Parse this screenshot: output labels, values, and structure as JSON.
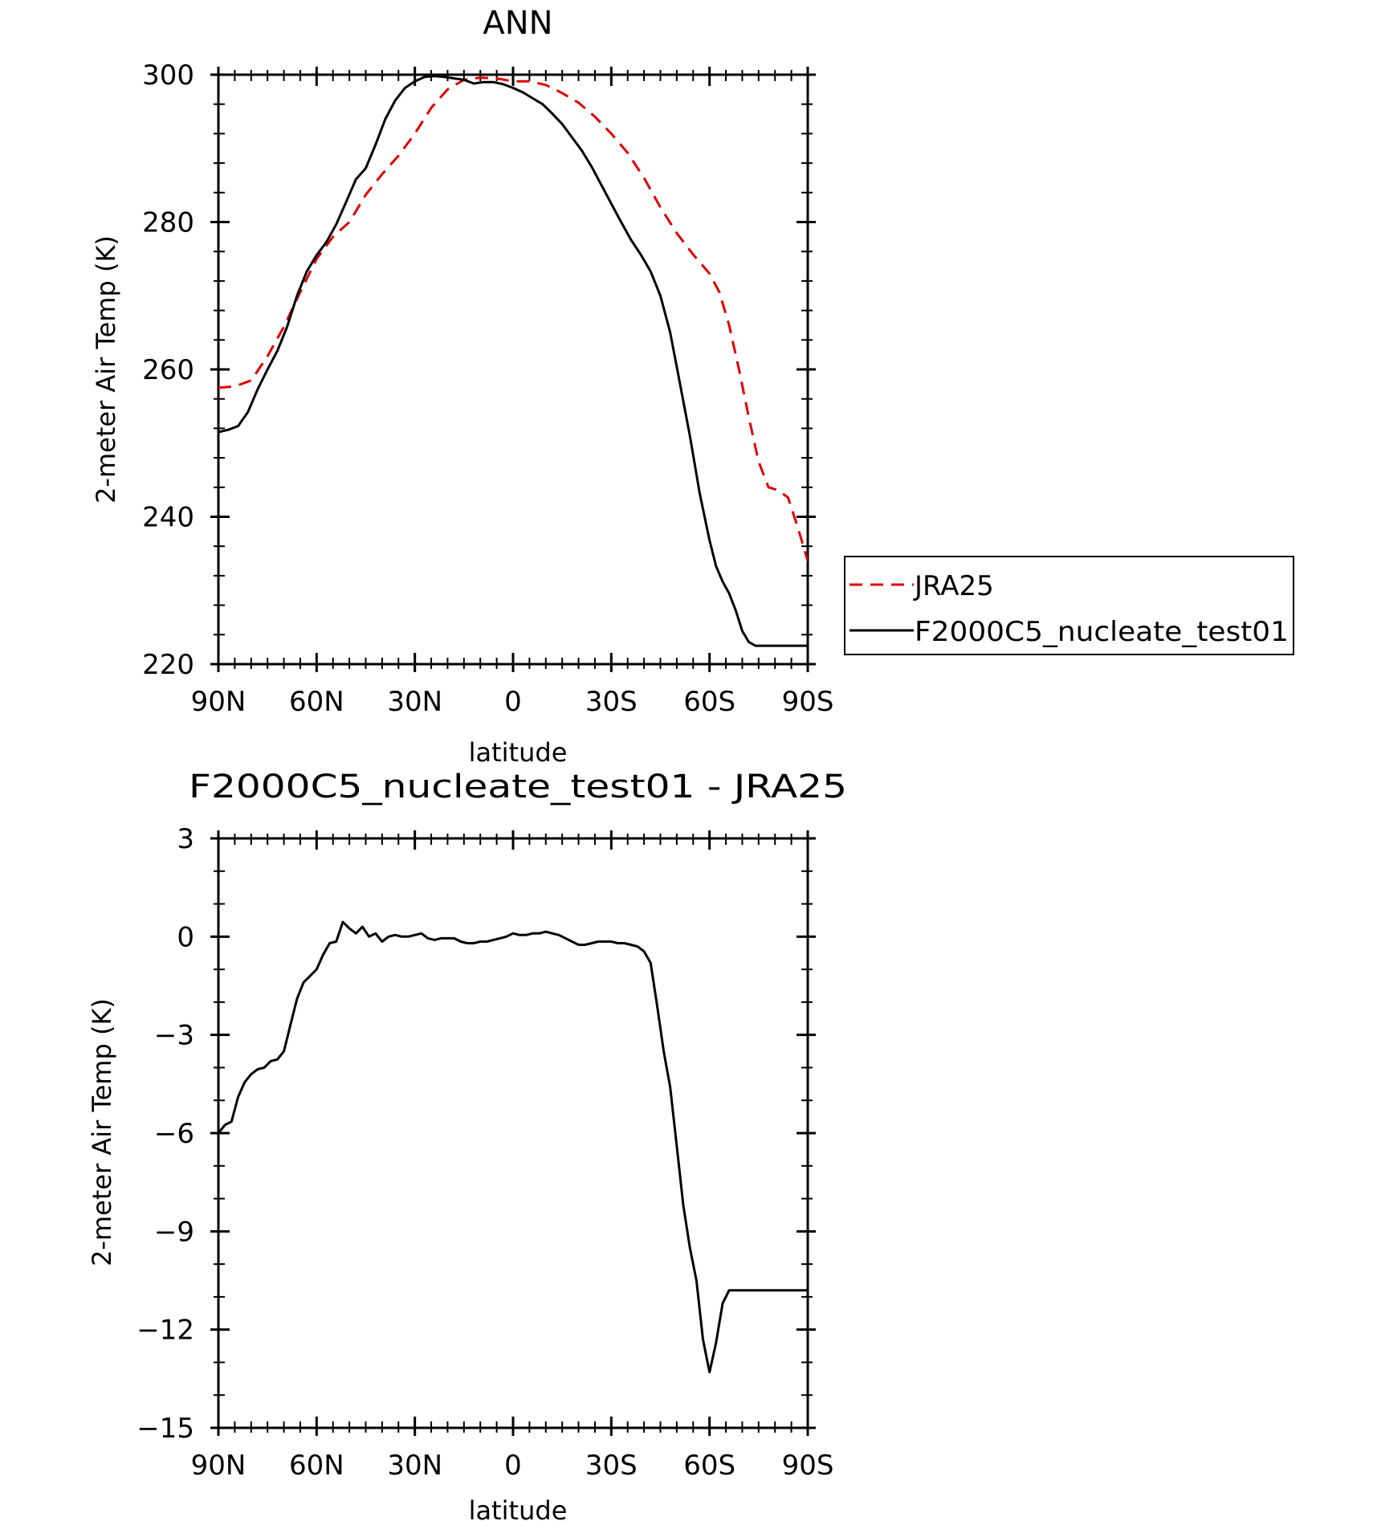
{
  "colors": {
    "axis": "#000000",
    "model_line": "#000000",
    "obs_line": "#e00000"
  },
  "chart_data": [
    {
      "type": "line",
      "title": "ANN",
      "xlabel": "latitude",
      "ylabel": "2-meter Air Temp (K)",
      "xlim": [
        90,
        -90
      ],
      "ylim": [
        220,
        300
      ],
      "xticks": [
        90,
        60,
        30,
        0,
        -30,
        -60,
        -90
      ],
      "xtick_labels": [
        "90N",
        "60N",
        "30N",
        "0",
        "30S",
        "60S",
        "90S"
      ],
      "yticks": [
        220,
        240,
        260,
        280,
        300
      ],
      "ytick_labels": [
        "220",
        "240",
        "260",
        "280",
        "300"
      ],
      "legend_position": "right-middle",
      "legend": [
        "JRA25",
        "F2000C5_nucleate_test01"
      ],
      "series": [
        {
          "name": "JRA25",
          "style": "dashed",
          "color": "#e00000",
          "x": [
            90,
            85,
            80,
            75,
            70,
            65,
            60,
            55,
            50,
            45,
            40,
            35,
            30,
            25,
            20,
            15,
            10,
            5,
            0,
            -5,
            -10,
            -15,
            -20,
            -25,
            -30,
            -35,
            -40,
            -45,
            -50,
            -55,
            -60,
            -63,
            -66,
            -69,
            -72,
            -75,
            -78,
            -81,
            -84,
            -87,
            -90
          ],
          "y": [
            257.5,
            257.7,
            258.5,
            261.8,
            265.8,
            270.5,
            275.0,
            278.0,
            280.0,
            283.7,
            286.5,
            289.0,
            292.0,
            295.5,
            298.0,
            299.3,
            299.6,
            299.5,
            299.1,
            299.1,
            298.6,
            297.5,
            296.2,
            294.3,
            292.0,
            289.4,
            286.0,
            282.0,
            278.5,
            275.6,
            273.0,
            270.5,
            266.0,
            260.0,
            253.5,
            247.5,
            244.0,
            243.6,
            242.6,
            238.5,
            234.0
          ]
        },
        {
          "name": "F2000C5_nucleate_test01",
          "style": "solid",
          "color": "#000000",
          "x": [
            90,
            87,
            84,
            81,
            78,
            75,
            72,
            69,
            66,
            63,
            60,
            57,
            54,
            51,
            48,
            45,
            42,
            39,
            36,
            33,
            30,
            27,
            24,
            21,
            18,
            15,
            12,
            9,
            6,
            3,
            0,
            -3,
            -6,
            -9,
            -12,
            -15,
            -18,
            -21,
            -24,
            -27,
            -30,
            -33,
            -36,
            -39,
            -42,
            -45,
            -48,
            -51,
            -54,
            -57,
            -60,
            -62,
            -64,
            -66,
            -68,
            -70,
            -72,
            -74,
            -76,
            -78,
            -80,
            -82,
            -84,
            -86,
            -88,
            -90
          ],
          "y": [
            251.5,
            251.8,
            252.3,
            254.2,
            257.3,
            260.0,
            262.5,
            265.8,
            270.0,
            273.3,
            275.5,
            277.3,
            279.7,
            282.7,
            285.8,
            287.3,
            290.5,
            294.0,
            296.5,
            298.2,
            299.1,
            299.7,
            299.8,
            299.7,
            299.5,
            299.3,
            298.8,
            299.0,
            299.0,
            298.7,
            298.2,
            297.6,
            296.8,
            296.0,
            294.7,
            293.3,
            291.5,
            289.7,
            287.5,
            285.0,
            282.5,
            280.0,
            277.6,
            275.6,
            273.3,
            270.0,
            265.0,
            258.0,
            251.0,
            243.2,
            236.8,
            233.3,
            231.2,
            229.6,
            227.3,
            224.5,
            223.0,
            222.5,
            222.5,
            222.5,
            222.5,
            222.5,
            222.5,
            222.5,
            222.5,
            222.5
          ]
        }
      ]
    },
    {
      "type": "line",
      "title": "F2000C5_nucleate_test01 - JRA25",
      "xlabel": "latitude",
      "ylabel": "2-meter Air Temp (K)",
      "xlim": [
        90,
        -90
      ],
      "ylim": [
        -15,
        3
      ],
      "xticks": [
        90,
        60,
        30,
        0,
        -30,
        -60,
        -90
      ],
      "xtick_labels": [
        "90N",
        "60N",
        "30N",
        "0",
        "30S",
        "60S",
        "90S"
      ],
      "yticks": [
        -15,
        -12,
        -9,
        -6,
        -3,
        0,
        3
      ],
      "ytick_labels": [
        "−15",
        "−12",
        "−9",
        "−6",
        "−3",
        "0",
        "3"
      ],
      "series": [
        {
          "style": "solid",
          "color": "#000000",
          "x": [
            90,
            88,
            86,
            84,
            82,
            80,
            78,
            76,
            74,
            72,
            70,
            68,
            66,
            64,
            62,
            60,
            58,
            56,
            54,
            52,
            50,
            48,
            46,
            44,
            42,
            40,
            38,
            36,
            34,
            32,
            30,
            28,
            26,
            24,
            22,
            20,
            18,
            16,
            14,
            12,
            10,
            8,
            6,
            4,
            2,
            0,
            -2,
            -4,
            -6,
            -8,
            -10,
            -12,
            -14,
            -16,
            -18,
            -20,
            -22,
            -24,
            -26,
            -28,
            -30,
            -32,
            -34,
            -36,
            -38,
            -40,
            -42,
            -44,
            -46,
            -48,
            -50,
            -52,
            -54,
            -56,
            -58,
            -60,
            -62,
            -64,
            -66,
            -68,
            -70,
            -72,
            -74,
            -76,
            -78,
            -80,
            -82,
            -84,
            -86,
            -88,
            -90
          ],
          "y": [
            -6.0,
            -5.75,
            -5.65,
            -4.9,
            -4.45,
            -4.2,
            -4.05,
            -4.0,
            -3.8,
            -3.75,
            -3.5,
            -2.7,
            -1.9,
            -1.4,
            -1.2,
            -1.0,
            -0.55,
            -0.2,
            -0.15,
            0.45,
            0.25,
            0.1,
            0.3,
            0.0,
            0.1,
            -0.15,
            0.0,
            0.05,
            0.0,
            0.0,
            0.05,
            0.1,
            -0.05,
            -0.1,
            -0.05,
            -0.05,
            -0.05,
            -0.15,
            -0.2,
            -0.2,
            -0.15,
            -0.15,
            -0.1,
            -0.05,
            0.0,
            0.1,
            0.05,
            0.05,
            0.1,
            0.1,
            0.15,
            0.1,
            0.05,
            -0.05,
            -0.15,
            -0.25,
            -0.25,
            -0.2,
            -0.15,
            -0.15,
            -0.15,
            -0.2,
            -0.2,
            -0.25,
            -0.3,
            -0.45,
            -0.8,
            -2.1,
            -3.5,
            -4.6,
            -6.4,
            -8.2,
            -9.5,
            -10.5,
            -12.3,
            -13.3,
            -12.4,
            -11.2,
            -10.8,
            -10.8,
            -10.8,
            -10.8,
            -10.8,
            -10.8,
            -10.8,
            -10.8,
            -10.8,
            -10.8,
            -10.8,
            -10.8,
            -10.8
          ]
        }
      ]
    }
  ]
}
